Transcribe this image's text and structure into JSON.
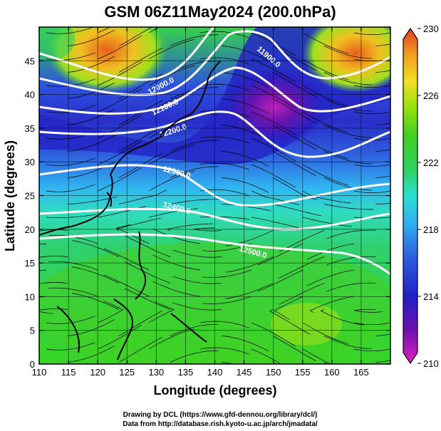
{
  "title": "GSM 06Z11May2024 (200.0hPa)",
  "chart_data": {
    "type": "heatmap",
    "xlabel": "Longitude (degrees)",
    "ylabel": "Latitude  (degrees)",
    "xlim": [
      110,
      170
    ],
    "ylim": [
      0,
      50
    ],
    "x_ticks": [
      110,
      115,
      120,
      125,
      130,
      135,
      140,
      145,
      150,
      155,
      160,
      165
    ],
    "y_ticks": [
      0,
      5,
      10,
      15,
      20,
      25,
      30,
      35,
      40,
      45
    ],
    "colorbar": {
      "min": 210,
      "max": 230,
      "ticks": [
        210,
        214,
        218,
        222,
        226,
        230
      ],
      "colors": [
        "#e020c0",
        "#7010b0",
        "#2020c8",
        "#2f60e0",
        "#30b0f0",
        "#28e0d0",
        "#30d060",
        "#40d020",
        "#90e010",
        "#f0e020",
        "#f0a020",
        "#e04020"
      ]
    },
    "contour_labels": [
      "11900.0",
      "12000.0",
      "12100.0",
      "12200.0",
      "12300.0",
      "12400.0",
      "12500.0"
    ],
    "grid": true
  },
  "credits": {
    "line1": "Drawing by DCL (https://www.gfd-dennou.org/library/dcl/)",
    "line2": "Data from http://database.rish.kyoto-u.ac.jp/arch/jmadata/"
  }
}
